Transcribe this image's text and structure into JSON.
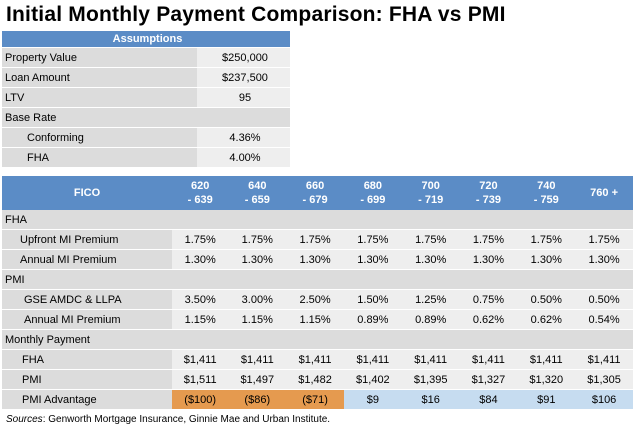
{
  "title": "Initial Monthly Payment Comparison: FHA vs PMI",
  "assumptions": {
    "header": "Assumptions",
    "rows": [
      {
        "label": "Property Value",
        "value": "$250,000"
      },
      {
        "label": "Loan Amount",
        "value": "$237,500"
      },
      {
        "label": "LTV",
        "value": "95"
      }
    ],
    "base_rate_label": "Base Rate",
    "base_rows": [
      {
        "label": "Conforming",
        "value": "4.36%"
      },
      {
        "label": "FHA",
        "value": "4.00%"
      }
    ]
  },
  "table": {
    "fico_label": "FICO",
    "columns": [
      {
        "l1": "620",
        "l2": "- 639"
      },
      {
        "l1": "640",
        "l2": "- 659"
      },
      {
        "l1": "660",
        "l2": "- 679"
      },
      {
        "l1": "680",
        "l2": "- 699"
      },
      {
        "l1": "700",
        "l2": "- 719"
      },
      {
        "l1": "720",
        "l2": "- 739"
      },
      {
        "l1": "740",
        "l2": "- 759"
      },
      {
        "l1": "760 +",
        "l2": ""
      }
    ],
    "fha_section": "FHA",
    "fha_rows": [
      {
        "label": "Upfront MI Premium",
        "values": [
          "1.75%",
          "1.75%",
          "1.75%",
          "1.75%",
          "1.75%",
          "1.75%",
          "1.75%",
          "1.75%"
        ]
      },
      {
        "label": "Annual MI Premium",
        "values": [
          "1.30%",
          "1.30%",
          "1.30%",
          "1.30%",
          "1.30%",
          "1.30%",
          "1.30%",
          "1.30%"
        ]
      }
    ],
    "pmi_section": "PMI",
    "pmi_rows": [
      {
        "label": "GSE AMDC & LLPA",
        "values": [
          "3.50%",
          "3.00%",
          "2.50%",
          "1.50%",
          "1.25%",
          "0.75%",
          "0.50%",
          "0.50%"
        ]
      },
      {
        "label": "Annual MI Premium",
        "values": [
          "1.15%",
          "1.15%",
          "1.15%",
          "0.89%",
          "0.89%",
          "0.62%",
          "0.62%",
          "0.54%"
        ]
      }
    ],
    "payment_section": "Monthly Payment",
    "payment_rows": [
      {
        "label": "FHA",
        "values": [
          "$1,411",
          "$1,411",
          "$1,411",
          "$1,411",
          "$1,411",
          "$1,411",
          "$1,411",
          "$1,411"
        ]
      },
      {
        "label": "PMI",
        "values": [
          "$1,511",
          "$1,497",
          "$1,482",
          "$1,402",
          "$1,395",
          "$1,327",
          "$1,320",
          "$1,305"
        ]
      }
    ],
    "advantage": {
      "label": "PMI Advantage",
      "values": [
        "($100)",
        "($86)",
        "($71)",
        "$9",
        "$16",
        "$84",
        "$91",
        "$106"
      ]
    }
  },
  "source": {
    "prefix": "Sources",
    "text": ": Genworth Mortgage Insurance, Ginnie Mae and Urban Institute."
  }
}
